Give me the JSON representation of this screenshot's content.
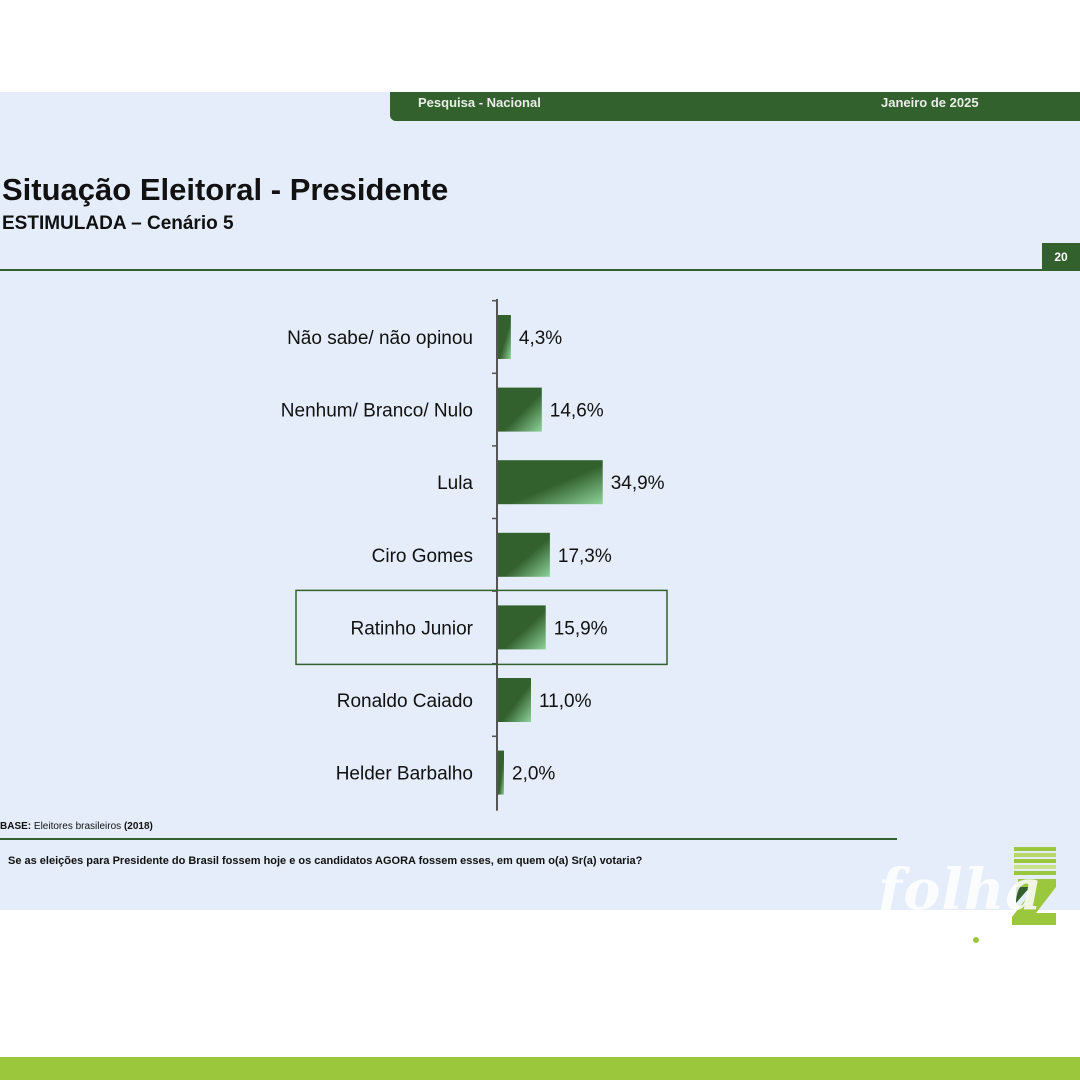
{
  "header": {
    "left": "Pesquisa - Nacional",
    "right": "Janeiro de 2025"
  },
  "title": "Situação Eleitoral - Presidente",
  "subtitle": "ESTIMULADA – Cenário 5",
  "page_number": "20",
  "footer": {
    "base_label": "BASE:",
    "base_text": "Eleitores brasileiros",
    "base_count": "(2018)",
    "question": "Se as eleições para Presidente do Brasil fossem hoje e os candidatos AGORA fossem esses, em quem o(a) Sr(a) votaria?"
  },
  "logo": {
    "text": "folha",
    "icon": "folhaz-z-logo-icon"
  },
  "colors": {
    "primary": "#33612e",
    "bar_light": "#8fd39a",
    "slide_bg": "#e4edf9",
    "accent": "#9ac73c"
  },
  "chart_data": {
    "type": "bar",
    "orientation": "horizontal",
    "categories": [
      "Não sabe/ não opinou",
      "Nenhum/ Branco/ Nulo",
      "Lula",
      "Ciro Gomes",
      "Ratinho Junior",
      "Ronaldo Caiado",
      "Helder Barbalho"
    ],
    "values": [
      4.3,
      14.6,
      34.9,
      17.3,
      15.9,
      11.0,
      2.0
    ],
    "value_labels": [
      "4,3%",
      "14,6%",
      "34,9%",
      "17,3%",
      "15,9%",
      "11,0%",
      "2,0%"
    ],
    "highlighted": "Ratinho Junior",
    "xlim": [
      0,
      100
    ],
    "grid": false,
    "legend": "none"
  }
}
